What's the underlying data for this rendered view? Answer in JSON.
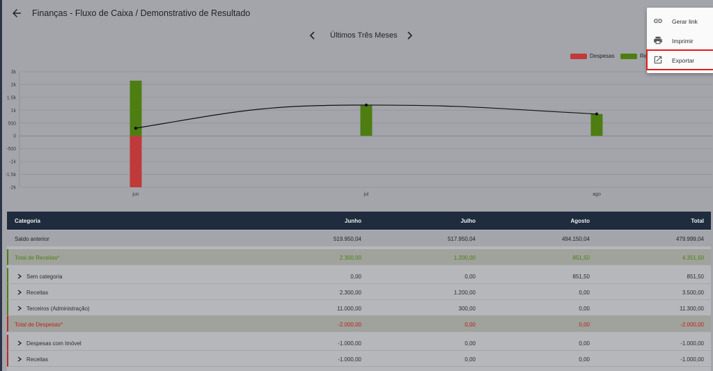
{
  "header": {
    "title": "Finanças - Fluxo de Caixa / Demonstrativo de Resultado"
  },
  "period": {
    "label": "Últimos Três Meses"
  },
  "legend": [
    {
      "label": "Despesas",
      "color": "#c0393b"
    },
    {
      "label": "Re",
      "color": "#4e7d12"
    }
  ],
  "menu": {
    "items": [
      {
        "label": "Gerar link",
        "icon": "link-icon"
      },
      {
        "label": "Imprimir",
        "icon": "print-icon"
      },
      {
        "label": "Exportar",
        "icon": "open-in-new-icon"
      }
    ]
  },
  "chart_data": {
    "type": "bar",
    "categories": [
      "jun",
      "jul",
      "ago"
    ],
    "series": [
      {
        "name": "Despesas",
        "color": "#c0393b",
        "values": [
          -2000,
          0,
          0
        ]
      },
      {
        "name": "Re",
        "color": "#4e7d12",
        "values": [
          2300,
          1200,
          851.5
        ]
      }
    ],
    "line": {
      "values": [
        300,
        1200,
        851.5
      ],
      "color": "#111111"
    },
    "yticks": [
      "3k",
      "2k",
      "1.5k",
      "1k",
      "500",
      "0",
      "-500",
      "-1k",
      "-1.5k",
      "-2k"
    ],
    "ytick_values": [
      3000,
      2000,
      1500,
      1000,
      500,
      0,
      -500,
      -1000,
      -1500,
      -2000
    ],
    "ylim": [
      -2000,
      3000
    ],
    "grid": true
  },
  "table": {
    "headers": [
      "Categoria",
      "Junho",
      "Julho",
      "Agosto",
      "Total"
    ],
    "rows": [
      {
        "label": "Saldo anterior",
        "values": [
          "519.950,04",
          "517.950,04",
          "494.150,04",
          "479.999,04"
        ]
      },
      {
        "label": "Total de Receitas*",
        "values": [
          "2.300,00",
          "1.200,00",
          "851,50",
          "4.351,50"
        ]
      },
      {
        "label": "Sem categoria",
        "values": [
          "0,00",
          "0,00",
          "851,50",
          "851,50"
        ]
      },
      {
        "label": "Receitas",
        "values": [
          "2.300,00",
          "1.200,00",
          "0,00",
          "3.500,00"
        ]
      },
      {
        "label": "Terceiros (Administração)",
        "values": [
          "11.000,00",
          "300,00",
          "0,00",
          "11.300,00"
        ]
      },
      {
        "label": "Total de Despesas*",
        "values": [
          "-2.000,00",
          "0,00",
          "0,00",
          "-2.000,00"
        ]
      },
      {
        "label": "Despesas com Imóvel",
        "values": [
          "-1.000,00",
          "0,00",
          "0,00",
          "-1.000,00"
        ]
      },
      {
        "label": "Receitas",
        "values": [
          "-1.000,00",
          "0,00",
          "0,00",
          "-1.000,00"
        ]
      }
    ]
  }
}
